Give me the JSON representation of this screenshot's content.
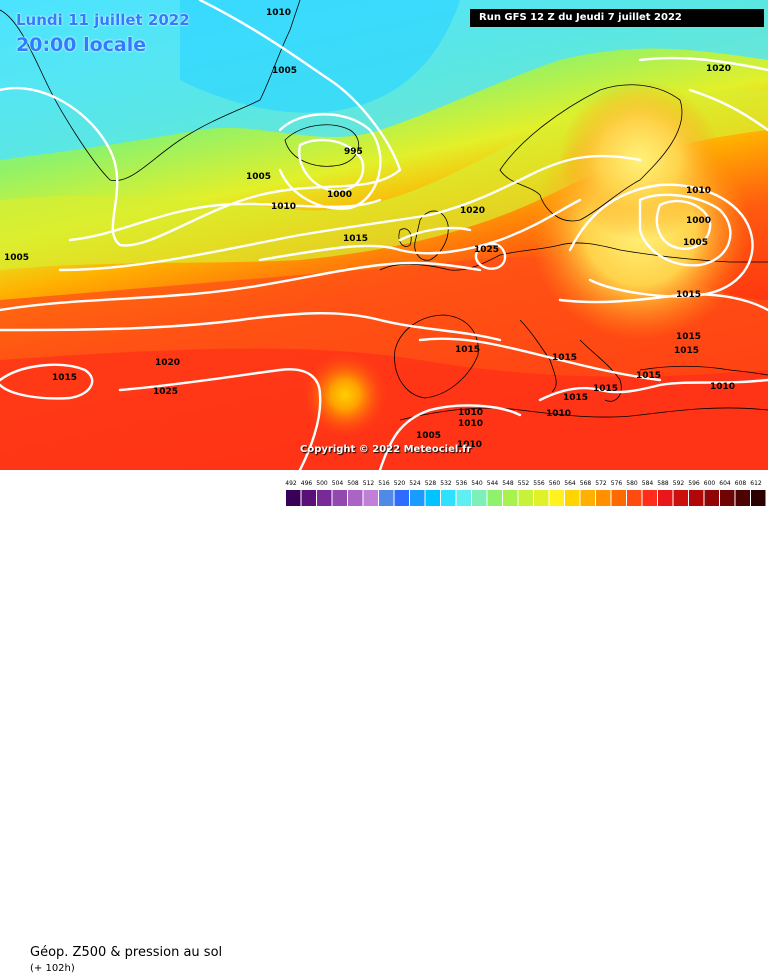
{
  "header": {
    "date_line": "Lundi 11 juillet 2022",
    "time_line": "20:00 locale",
    "run_info": "Run GFS 12 Z du Jeudi 7 juillet 2022"
  },
  "map": {
    "copyright": "Copyright © 2022 Meteociel.fr",
    "isobar_labels": [
      "1010",
      "1005",
      "995",
      "1005",
      "1000",
      "1010",
      "1015",
      "1020",
      "1025",
      "1010",
      "1000",
      "1005",
      "1015",
      "1020",
      "1015",
      "1015",
      "1015",
      "1015",
      "1015",
      "1015",
      "1010",
      "1010",
      "1010",
      "1005",
      "1010",
      "1015",
      "1020",
      "1025",
      "1015",
      "1005",
      "1010"
    ],
    "colors": {
      "low_geopotential": "#3fd9ff",
      "mid_geopotential": "#8ef26a",
      "high_geopotential": "#ff3b1f",
      "max_geopotential": "#ffd000",
      "isobar": "#ffffff",
      "coastline": "#000000"
    }
  },
  "footer": {
    "title": "Géop. Z500 & pression au sol",
    "lead_time": "(+ 102h)",
    "scale_labels": [
      "492",
      "496",
      "500",
      "504",
      "508",
      "512",
      "516",
      "520",
      "524",
      "528",
      "532",
      "536",
      "540",
      "544",
      "548",
      "552",
      "556",
      "560",
      "564",
      "568",
      "572",
      "576",
      "580",
      "584",
      "588",
      "592",
      "596",
      "600",
      "604",
      "608",
      "612"
    ],
    "scale_colors": [
      "#3a0058",
      "#5a1078",
      "#7a2a98",
      "#9348b0",
      "#a964c4",
      "#c080d8",
      "#4f8ae6",
      "#2e6cff",
      "#1a9bff",
      "#00c4ff",
      "#2fe0ff",
      "#5ef0f0",
      "#7cf0b8",
      "#8ef26a",
      "#a8f24e",
      "#c6f23a",
      "#e2f02a",
      "#fff21e",
      "#ffd400",
      "#ffb000",
      "#ff9000",
      "#ff6a00",
      "#ff4a10",
      "#ff2d1a",
      "#e8181a",
      "#cc1010",
      "#b00808",
      "#900606",
      "#6e0404",
      "#4a0202",
      "#2a0000"
    ]
  }
}
